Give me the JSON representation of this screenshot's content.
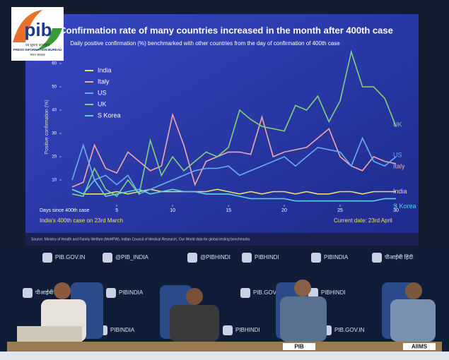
{
  "chart_data": {
    "type": "line",
    "title": "Confirmation rate of many countries increased in the month after 400th case",
    "subtitle": "Daily positive confirmation (%) benchmarked with other countries from the day of confirmation of 400th case",
    "y_label": "Positive confirmation (%)",
    "x_label": "Days since 400th case",
    "annotations": [
      "India's 400th case on 23rd March",
      "Current date: 23rd April"
    ],
    "source": "Source: Ministry of Health and Family Welfare (MoHFW), Indian Council of Medical Research, Our World data for global testing benchmarks",
    "x": [
      1,
      2,
      3,
      4,
      5,
      6,
      7,
      8,
      9,
      10,
      11,
      12,
      13,
      14,
      15,
      16,
      17,
      18,
      19,
      20,
      21,
      22,
      23,
      24,
      25,
      26,
      27,
      28,
      29,
      30
    ],
    "series": [
      {
        "name": "India",
        "color": "#e8e070",
        "values": [
          6,
          4,
          4,
          4,
          5,
          4,
          5,
          6,
          5,
          5,
          5,
          5,
          5,
          6,
          5,
          4,
          5,
          4,
          5,
          5,
          4,
          5,
          4,
          4,
          5,
          5,
          4,
          5,
          5,
          5
        ]
      },
      {
        "name": "Italy",
        "color": "#eea8a8",
        "values": [
          7,
          9,
          25,
          15,
          13,
          22,
          18,
          14,
          16,
          38,
          25,
          8,
          18,
          20,
          22,
          22,
          21,
          37,
          20,
          22,
          23,
          24,
          28,
          32,
          20,
          16,
          14,
          20,
          18,
          17
        ]
      },
      {
        "name": "US",
        "color": "#6aaee8",
        "values": [
          10,
          25,
          10,
          12,
          8,
          12,
          4,
          6,
          8,
          10,
          12,
          14,
          15,
          15,
          16,
          12,
          14,
          16,
          18,
          20,
          16,
          20,
          24,
          23,
          22,
          16,
          28,
          18,
          16,
          20
        ]
      },
      {
        "name": "UK",
        "color": "#7fd07f",
        "values": [
          4,
          3,
          15,
          6,
          3,
          10,
          4,
          27,
          12,
          20,
          14,
          18,
          22,
          20,
          24,
          40,
          36,
          33,
          32,
          31,
          42,
          40,
          46,
          35,
          44,
          65,
          50,
          50,
          45,
          33
        ]
      },
      {
        "name": "S Korea",
        "color": "#60d0e0",
        "values": [
          6,
          4,
          10,
          3,
          4,
          5,
          6,
          4,
          5,
          6,
          5,
          5,
          4,
          4,
          4,
          3,
          2,
          2,
          2,
          2,
          1,
          1,
          1,
          1,
          1,
          1,
          1,
          1,
          2,
          2
        ]
      }
    ],
    "xlim": [
      1,
      30
    ],
    "xticks": [
      5,
      10,
      15,
      20,
      25,
      30
    ],
    "ylim": [
      0,
      65
    ],
    "yticks": [
      10,
      20,
      30,
      40,
      50,
      60
    ]
  },
  "logo": {
    "mark": "pib",
    "hindi": "पत्र सूचना कार्यालय",
    "english": "PRESS INFORMATION BUREAU",
    "gov": "भारत सरकार"
  },
  "backdrop": [
    [
      "PIB.GOV.IN",
      "@PIB_INDIA",
      "@PIBHINDI",
      "PIBHINDI",
      "PIBINDIA",
      "पीआईबी हिंदी"
    ],
    [
      "पीआईबी हिंदी",
      "PIBINDIA",
      "PIB.GOV.IN",
      "PIBHINDI"
    ],
    [
      "PIBINDIA",
      "PIBHINDI",
      "PIB.GOV.IN"
    ]
  ],
  "nameplates": [
    "PIB",
    "AIIMS"
  ]
}
